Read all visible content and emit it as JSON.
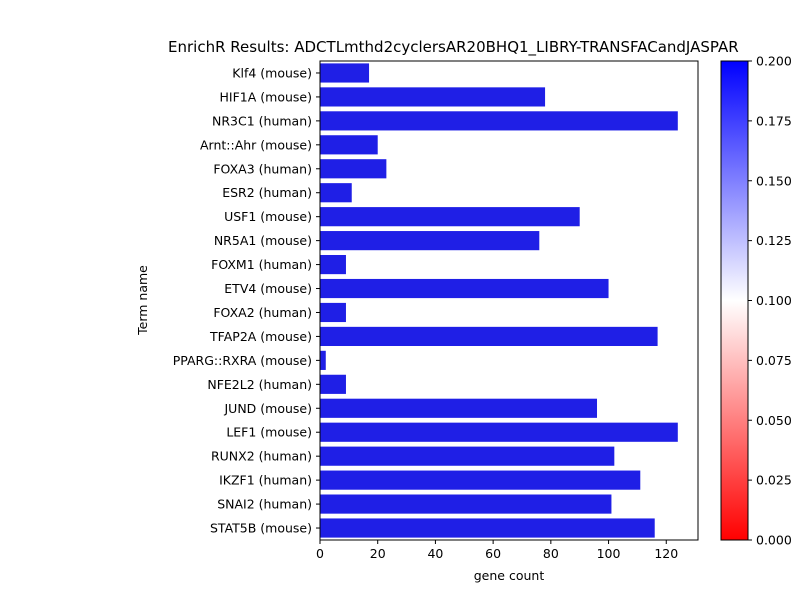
{
  "chart_data": {
    "type": "bar",
    "orientation": "horizontal",
    "title": "EnrichR Results: ADCTLmthd2cyclersAR20BHQ1_LIBRY-TRANSFACandJASPAR",
    "xlabel": "gene count",
    "ylabel": "Term name",
    "xlim": [
      0,
      131
    ],
    "xticks": [
      "0",
      "20",
      "40",
      "60",
      "80",
      "100",
      "120"
    ],
    "grid": false,
    "categories": [
      "Klf4 (mouse)",
      "HIF1A (mouse)",
      "NR3C1 (human)",
      "Arnt::Ahr (mouse)",
      "FOXA3 (human)",
      "ESR2 (human)",
      "USF1 (mouse)",
      "NR5A1 (mouse)",
      "FOXM1 (human)",
      "ETV4 (mouse)",
      "FOXA2 (human)",
      "TFAP2A (mouse)",
      "PPARG::RXRA (mouse)",
      "NFE2L2 (human)",
      "JUND (mouse)",
      "LEF1 (mouse)",
      "RUNX2 (human)",
      "IKZF1 (human)",
      "SNAI2 (human)",
      "STAT5B (mouse)"
    ],
    "values": [
      17,
      78,
      124,
      20,
      23,
      11,
      90,
      76,
      9,
      100,
      9,
      117,
      2,
      9,
      96,
      124,
      102,
      111,
      101,
      116
    ],
    "bar_color": "#1f1fe6",
    "colorbar": {
      "colormap": "bwr_r",
      "range": [
        0.0,
        0.2
      ],
      "ticks": [
        "0.000",
        "0.025",
        "0.050",
        "0.075",
        "0.100",
        "0.125",
        "0.150",
        "0.175",
        "0.200"
      ],
      "colors": {
        "low": "#ff0000",
        "mid": "#ffffff",
        "high": "#0000ff"
      }
    }
  }
}
